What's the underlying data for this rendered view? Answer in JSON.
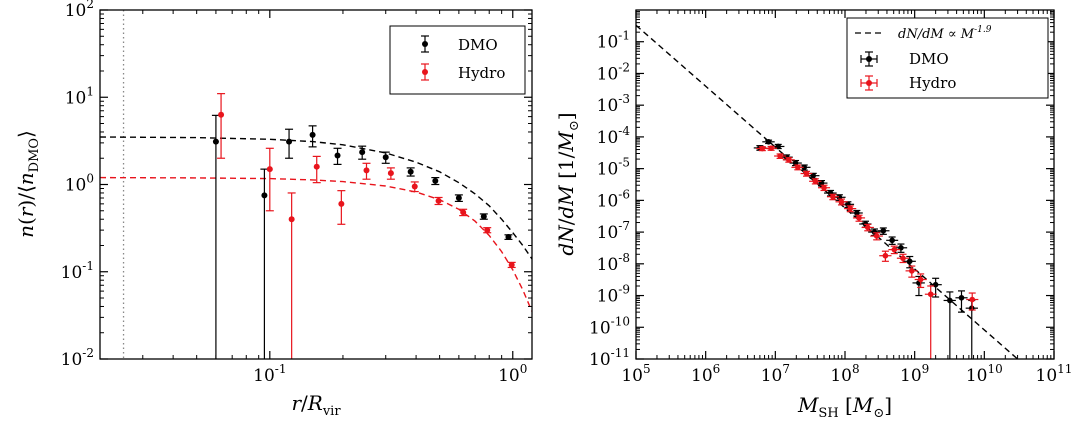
{
  "chart_data": [
    {
      "type": "scatter",
      "xlabel": "r/R_vir",
      "ylabel": "n(r)/⟨n_DMO⟩",
      "xscale": "log",
      "yscale": "log",
      "xlim": [
        0.02,
        1.2
      ],
      "ylim": [
        0.01,
        100
      ],
      "x_ticks": [
        {
          "value": 0.1,
          "label": "10",
          "sup": "-1"
        },
        {
          "value": 1,
          "label": "10",
          "sup": "0"
        }
      ],
      "y_ticks": [
        {
          "value": 0.01,
          "label": "10",
          "sup": "-2"
        },
        {
          "value": 0.1,
          "label": "10",
          "sup": "-1"
        },
        {
          "value": 1,
          "label": "10",
          "sup": "0"
        },
        {
          "value": 10,
          "label": "10",
          "sup": "1"
        },
        {
          "value": 100,
          "label": "10",
          "sup": "2"
        }
      ],
      "vline": {
        "x": 0.025,
        "style": "dotted",
        "color": "#888888"
      },
      "legend": {
        "position": "top-right",
        "entries": [
          "DMO",
          "Hydro"
        ]
      },
      "series": [
        {
          "name": "DMO",
          "color": "#000000",
          "points": [
            {
              "x": 0.06,
              "y": 3.1,
              "lo": 0.01,
              "hi": 6.2
            },
            {
              "x": 0.095,
              "y": 0.75,
              "lo": 0.01,
              "hi": 1.5
            },
            {
              "x": 0.12,
              "y": 3.1,
              "lo": 2.0,
              "hi": 4.3
            },
            {
              "x": 0.15,
              "y": 3.7,
              "lo": 2.7,
              "hi": 4.7
            },
            {
              "x": 0.19,
              "y": 2.15,
              "lo": 1.7,
              "hi": 2.6
            },
            {
              "x": 0.24,
              "y": 2.35,
              "lo": 1.95,
              "hi": 2.75
            },
            {
              "x": 0.3,
              "y": 2.05,
              "lo": 1.75,
              "hi": 2.35
            },
            {
              "x": 0.38,
              "y": 1.4,
              "lo": 1.25,
              "hi": 1.55
            },
            {
              "x": 0.48,
              "y": 1.1,
              "lo": 1.0,
              "hi": 1.2
            },
            {
              "x": 0.6,
              "y": 0.7,
              "lo": 0.64,
              "hi": 0.76
            },
            {
              "x": 0.76,
              "y": 0.43,
              "lo": 0.4,
              "hi": 0.46
            },
            {
              "x": 0.96,
              "y": 0.25,
              "lo": 0.235,
              "hi": 0.265
            }
          ],
          "fit": [
            [
              0.02,
              3.5
            ],
            [
              0.05,
              3.45
            ],
            [
              0.1,
              3.3
            ],
            [
              0.15,
              3.1
            ],
            [
              0.2,
              2.85
            ],
            [
              0.3,
              2.3
            ],
            [
              0.4,
              1.8
            ],
            [
              0.5,
              1.4
            ],
            [
              0.6,
              1.05
            ],
            [
              0.7,
              0.78
            ],
            [
              0.8,
              0.57
            ],
            [
              0.9,
              0.4
            ],
            [
              1.0,
              0.28
            ],
            [
              1.1,
              0.2
            ],
            [
              1.2,
              0.14
            ]
          ]
        },
        {
          "name": "Hydro",
          "color": "#e8141c",
          "points": [
            {
              "x": 0.063,
              "y": 6.3,
              "lo": 2.0,
              "hi": 11.0
            },
            {
              "x": 0.1,
              "y": 1.5,
              "lo": 0.5,
              "hi": 2.6
            },
            {
              "x": 0.123,
              "y": 0.4,
              "lo": 0.01,
              "hi": 0.8
            },
            {
              "x": 0.156,
              "y": 1.6,
              "lo": 1.05,
              "hi": 2.1
            },
            {
              "x": 0.197,
              "y": 0.6,
              "lo": 0.35,
              "hi": 0.85
            },
            {
              "x": 0.25,
              "y": 1.45,
              "lo": 1.15,
              "hi": 1.75
            },
            {
              "x": 0.315,
              "y": 1.35,
              "lo": 1.15,
              "hi": 1.55
            },
            {
              "x": 0.395,
              "y": 0.95,
              "lo": 0.83,
              "hi": 1.07
            },
            {
              "x": 0.495,
              "y": 0.65,
              "lo": 0.59,
              "hi": 0.71
            },
            {
              "x": 0.625,
              "y": 0.48,
              "lo": 0.44,
              "hi": 0.52
            },
            {
              "x": 0.785,
              "y": 0.3,
              "lo": 0.28,
              "hi": 0.32
            },
            {
              "x": 0.99,
              "y": 0.12,
              "lo": 0.112,
              "hi": 0.128
            }
          ],
          "fit": [
            [
              0.02,
              1.2
            ],
            [
              0.05,
              1.19
            ],
            [
              0.1,
              1.17
            ],
            [
              0.15,
              1.13
            ],
            [
              0.2,
              1.08
            ],
            [
              0.3,
              0.96
            ],
            [
              0.4,
              0.82
            ],
            [
              0.5,
              0.67
            ],
            [
              0.6,
              0.52
            ],
            [
              0.7,
              0.38
            ],
            [
              0.8,
              0.26
            ],
            [
              0.9,
              0.17
            ],
            [
              1.0,
              0.105
            ],
            [
              1.1,
              0.062
            ],
            [
              1.2,
              0.035
            ]
          ]
        }
      ]
    },
    {
      "type": "scatter",
      "xlabel": "M_SH [M_⊙]",
      "ylabel": "dN/dM [1/M_⊙]",
      "xscale": "log",
      "yscale": "log",
      "xlim": [
        100000.0,
        100000000000.0
      ],
      "ylim": [
        1e-11,
        1
      ],
      "x_ticks": [
        {
          "value": 100000.0,
          "label": "10",
          "sup": "5"
        },
        {
          "value": 1000000.0,
          "label": "10",
          "sup": "6"
        },
        {
          "value": 10000000.0,
          "label": "10",
          "sup": "7"
        },
        {
          "value": 100000000.0,
          "label": "10",
          "sup": "8"
        },
        {
          "value": 1000000000.0,
          "label": "10",
          "sup": "9"
        },
        {
          "value": 10000000000.0,
          "label": "10",
          "sup": "10"
        },
        {
          "value": 100000000000.0,
          "label": "10",
          "sup": "11"
        }
      ],
      "y_ticks": [
        {
          "value": 1e-11,
          "label": "10",
          "sup": "-11"
        },
        {
          "value": 1e-10,
          "label": "10",
          "sup": "-10"
        },
        {
          "value": 1e-09,
          "label": "10",
          "sup": "-9"
        },
        {
          "value": 1e-08,
          "label": "10",
          "sup": "-8"
        },
        {
          "value": 1e-07,
          "label": "10",
          "sup": "-7"
        },
        {
          "value": 1e-06,
          "label": "10",
          "sup": "-6"
        },
        {
          "value": 1e-05,
          "label": "10",
          "sup": "-5"
        },
        {
          "value": 0.0001,
          "label": "10",
          "sup": "-4"
        },
        {
          "value": 0.001,
          "label": "10",
          "sup": "-3"
        },
        {
          "value": 0.01,
          "label": "10",
          "sup": "-2"
        },
        {
          "value": 0.1,
          "label": "10",
          "sup": "-1"
        }
      ],
      "powerlaw": {
        "label": "dN/dM ∝ M",
        "sup": "-1.9",
        "slope": -1.9,
        "points": [
          [
            100000.0,
            0.33
          ],
          [
            30000000000.0,
            1e-11
          ]
        ]
      },
      "legend": {
        "position": "top-right",
        "entries": [
          "DMO",
          "Hydro"
        ]
      },
      "series": [
        {
          "name": "DMO",
          "color": "#000000",
          "points": [
            {
              "x": 6000000.0,
              "y": 4.5e-05,
              "xlo": 4900000.0,
              "xhi": 7400000.0,
              "lo": 3.8e-05,
              "hi": 5.3e-05
            },
            {
              "x": 8000000.0,
              "y": 7e-05,
              "xlo": 6500000.0,
              "xhi": 9800000.0,
              "lo": 6.2e-05,
              "hi": 7.9e-05
            },
            {
              "x": 11000000.0,
              "y": 5e-05,
              "xlo": 9000000.0,
              "xhi": 13500000.0,
              "lo": 4.3e-05,
              "hi": 5.8e-05
            },
            {
              "x": 14500000.0,
              "y": 2.3e-05,
              "xlo": 11800000.0,
              "xhi": 17800000.0,
              "lo": 1.9e-05,
              "hi": 2.7e-05
            },
            {
              "x": 19500000.0,
              "y": 1.5e-05,
              "xlo": 16000000.0,
              "xhi": 24000000.0,
              "lo": 1.25e-05,
              "hi": 1.8e-05
            },
            {
              "x": 26000000.0,
              "y": 1.1e-05,
              "xlo": 21000000.0,
              "xhi": 32000000.0,
              "lo": 9e-06,
              "hi": 1.3e-05
            },
            {
              "x": 35000000.0,
              "y": 6e-06,
              "xlo": 28500000.0,
              "xhi": 43000000.0,
              "lo": 4.9e-06,
              "hi": 7.1e-06
            },
            {
              "x": 46000000.0,
              "y": 3.5e-06,
              "xlo": 37500000.0,
              "xhi": 56000000.0,
              "lo": 2.85e-06,
              "hi": 4.2e-06
            },
            {
              "x": 62000000.0,
              "y": 1.7e-06,
              "xlo": 50000000.0,
              "xhi": 76000000.0,
              "lo": 1.38e-06,
              "hi": 2.05e-06
            },
            {
              "x": 83000000.0,
              "y": 1.25e-06,
              "xlo": 68000000.0,
              "xhi": 102000000.0,
              "lo": 1e-06,
              "hi": 1.5e-06
            },
            {
              "x": 110000000.0,
              "y": 7.5e-07,
              "xlo": 90000000.0,
              "xhi": 135000000.0,
              "lo": 6e-07,
              "hi": 9e-07
            },
            {
              "x": 148000000.0,
              "y": 4e-07,
              "xlo": 120000000.0,
              "xhi": 180000000.0,
              "lo": 3.2e-07,
              "hi": 4.8e-07
            },
            {
              "x": 197000000.0,
              "y": 1.8e-07,
              "xlo": 160000000.0,
              "xhi": 240000000.0,
              "lo": 1.42e-07,
              "hi": 2.2e-07
            },
            {
              "x": 265000000.0,
              "y": 1e-07,
              "xlo": 215000000.0,
              "xhi": 325000000.0,
              "lo": 7.8e-08,
              "hi": 1.25e-07
            },
            {
              "x": 355000000.0,
              "y": 1.1e-07,
              "xlo": 290000000.0,
              "xhi": 435000000.0,
              "lo": 8.5e-08,
              "hi": 1.35e-07
            },
            {
              "x": 475000000.0,
              "y": 5.5e-08,
              "xlo": 390000000.0,
              "xhi": 580000000.0,
              "lo": 4.1e-08,
              "hi": 7e-08
            },
            {
              "x": 635000000.0,
              "y": 3.2e-08,
              "xlo": 520000000.0,
              "xhi": 780000000.0,
              "lo": 2.3e-08,
              "hi": 4.2e-08
            },
            {
              "x": 850000000.0,
              "y": 1.2e-08,
              "xlo": 690000000.0,
              "xhi": 1040000000.0,
              "lo": 7.5e-09,
              "hi": 1.7e-08
            },
            {
              "x": 1150000000.0,
              "y": 2.5e-09,
              "xlo": 930000000.0,
              "xhi": 1400000000.0,
              "lo": 1e-09,
              "hi": 4e-09
            },
            {
              "x": 2000000000.0,
              "y": 2.2e-09,
              "xlo": 1650000000.0,
              "xhi": 2450000000.0,
              "lo": 9e-10,
              "hi": 3.5e-09
            },
            {
              "x": 3200000000.0,
              "y": 7e-10,
              "xlo": 2600000000.0,
              "xhi": 3900000000.0,
              "lo": 1e-11,
              "hi": 1.3e-09
            },
            {
              "x": 4700000000.0,
              "y": 8.5e-10,
              "xlo": 3850000000.0,
              "xhi": 5750000000.0,
              "lo": 3e-10,
              "hi": 1.4e-09
            },
            {
              "x": 6600000000.0,
              "y": 4e-10,
              "xlo": 5400000000.0,
              "xhi": 8100000000.0,
              "lo": 1e-11,
              "hi": 7e-10
            }
          ]
        },
        {
          "name": "Hydro",
          "color": "#e8141c",
          "points": [
            {
              "x": 6500000.0,
              "y": 4.3e-05,
              "xlo": 5300000.0,
              "xhi": 8000000.0,
              "lo": 3.7e-05,
              "hi": 4.9e-05
            },
            {
              "x": 8700000.0,
              "y": 4.4e-05,
              "xlo": 7100000.0,
              "xhi": 10600000.0,
              "lo": 3.8e-05,
              "hi": 5e-05
            },
            {
              "x": 11700000.0,
              "y": 2.5e-05,
              "xlo": 9600000.0,
              "xhi": 14300000.0,
              "lo": 2.1e-05,
              "hi": 2.9e-05
            },
            {
              "x": 15600000.0,
              "y": 1.9e-05,
              "xlo": 12800000.0,
              "xhi": 19000000.0,
              "lo": 1.6e-05,
              "hi": 2.2e-05
            },
            {
              "x": 21000000.0,
              "y": 1.1e-05,
              "xlo": 17000000.0,
              "xhi": 25500000.0,
              "lo": 9.2e-06,
              "hi": 1.3e-05
            },
            {
              "x": 28000000.0,
              "y": 7e-06,
              "xlo": 23000000.0,
              "xhi": 34000000.0,
              "lo": 5.8e-06,
              "hi": 8.2e-06
            },
            {
              "x": 37500000.0,
              "y": 4e-06,
              "xlo": 30500000.0,
              "xhi": 46000000.0,
              "lo": 3.3e-06,
              "hi": 4.8e-06
            },
            {
              "x": 50000000.0,
              "y": 2.5e-06,
              "xlo": 41000000.0,
              "xhi": 61000000.0,
              "lo": 2.05e-06,
              "hi": 3e-06
            },
            {
              "x": 67000000.0,
              "y": 1.3e-06,
              "xlo": 55000000.0,
              "xhi": 82000000.0,
              "lo": 1.05e-06,
              "hi": 1.55e-06
            },
            {
              "x": 89000000.0,
              "y": 9e-07,
              "xlo": 73000000.0,
              "xhi": 109000000.0,
              "lo": 7.2e-07,
              "hi": 1.1e-06
            },
            {
              "x": 119000000.0,
              "y": 5.5e-07,
              "xlo": 97000000.0,
              "xhi": 145000000.0,
              "lo": 4.4e-07,
              "hi": 6.7e-07
            },
            {
              "x": 159000000.0,
              "y": 2.8e-07,
              "xlo": 130000000.0,
              "xhi": 194000000.0,
              "lo": 2.2e-07,
              "hi": 3.4e-07
            },
            {
              "x": 212000000.0,
              "y": 1.4e-07,
              "xlo": 173000000.0,
              "xhi": 260000000.0,
              "lo": 1.1e-07,
              "hi": 1.75e-07
            },
            {
              "x": 285000000.0,
              "y": 7.5e-08,
              "xlo": 230000000.0,
              "xhi": 350000000.0,
              "lo": 5.7e-08,
              "hi": 9.5e-08
            },
            {
              "x": 380000000.0,
              "y": 1.8e-08,
              "xlo": 310000000.0,
              "xhi": 465000000.0,
              "lo": 1.2e-08,
              "hi": 2.5e-08
            },
            {
              "x": 510000000.0,
              "y": 2.8e-08,
              "xlo": 420000000.0,
              "xhi": 620000000.0,
              "lo": 2.1e-08,
              "hi": 3.6e-08
            },
            {
              "x": 680000000.0,
              "y": 1.5e-08,
              "xlo": 555000000.0,
              "xhi": 830000000.0,
              "lo": 1.1e-08,
              "hi": 2e-08
            },
            {
              "x": 910000000.0,
              "y": 6e-09,
              "xlo": 740000000.0,
              "xhi": 1110000000.0,
              "lo": 3.8e-09,
              "hi": 8.5e-09
            },
            {
              "x": 1220000000.0,
              "y": 3.2e-09,
              "xlo": 1000000000.0,
              "xhi": 1490000000.0,
              "lo": 1.8e-09,
              "hi": 4.8e-09
            },
            {
              "x": 1700000000.0,
              "y": 1.1e-09,
              "xlo": 1400000000.0,
              "xhi": 2070000000.0,
              "lo": 1e-11,
              "hi": 2e-09
            },
            {
              "x": 6700000000.0,
              "y": 7.5e-10,
              "xlo": 5500000000.0,
              "xhi": 8200000000.0,
              "lo": 3.5e-10,
              "hi": 1.2e-09
            }
          ]
        }
      ]
    }
  ]
}
